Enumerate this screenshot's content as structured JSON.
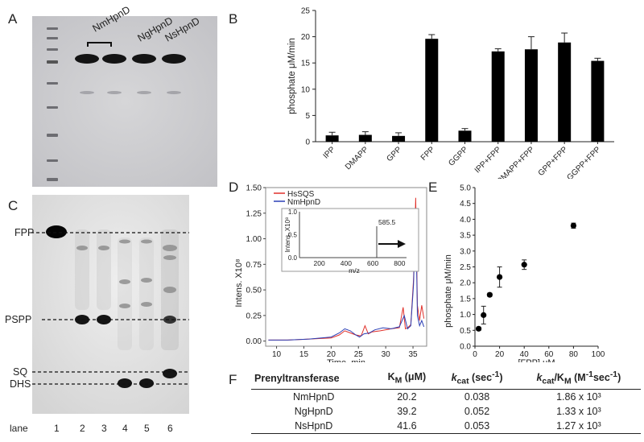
{
  "panels": {
    "A": {
      "letter": "A",
      "lane_labels": [
        "NmHpnD",
        "NgHpnD",
        "NsHpnD"
      ]
    },
    "B": {
      "letter": "B"
    },
    "C": {
      "letter": "C",
      "band_labels": [
        "FPP",
        "PSPP",
        "SQ",
        "DHS"
      ],
      "lane_title": "lane",
      "lanes": [
        "1",
        "2",
        "3",
        "4",
        "5",
        "6"
      ]
    },
    "D": {
      "letter": "D",
      "legend": [
        "HsSQS",
        "NmHpnD"
      ],
      "inset": {
        "ylabel": "Intens. X10⁸",
        "xlabel": "m/z",
        "peak_label": "585.5",
        "yticks": [
          "0.0",
          "0.5",
          "1.0"
        ],
        "xticks": [
          "200",
          "400",
          "600",
          "800"
        ]
      }
    },
    "E": {
      "letter": "E"
    },
    "F": {
      "letter": "F",
      "headers": [
        "Prenyltransferase",
        "KM (μM)",
        "kcat (sec⁻¹)",
        "kcat/KM (M⁻¹sec⁻¹)"
      ],
      "rows": [
        [
          "NmHpnD",
          "20.2",
          "0.038",
          "1.86 x 10³"
        ],
        [
          "NgHpnD",
          "39.2",
          "0.052",
          "1.33 x 10³"
        ],
        [
          "NsHpnD",
          "41.6",
          "0.053",
          "1.27 x 10³"
        ]
      ]
    }
  },
  "chart_data": [
    {
      "panel": "B",
      "type": "bar",
      "categories": [
        "IPP",
        "DMAPP",
        "GPP",
        "FPP",
        "GGPP",
        "IPP+FPP",
        "DMAPP+FPP",
        "GPP+FPP",
        "GGPP+FPP"
      ],
      "values": [
        1.2,
        1.3,
        1.1,
        19.6,
        2.1,
        17.2,
        17.6,
        18.9,
        15.4
      ],
      "errors": [
        0.6,
        0.6,
        0.6,
        0.8,
        0.4,
        0.5,
        2.4,
        1.8,
        0.5
      ],
      "ylabel": "phosphate μM/min",
      "ylim": [
        0,
        25
      ],
      "yticks": [
        0,
        5,
        10,
        15,
        20,
        25
      ],
      "color": "#000000"
    },
    {
      "panel": "D",
      "type": "line",
      "xlabel": "Time, min",
      "ylabel": "Intens. X10⁸",
      "xlim": [
        8,
        37.5
      ],
      "ylim": [
        -0.05,
        1.5
      ],
      "xticks": [
        10,
        15,
        20,
        25,
        30,
        35
      ],
      "yticks": [
        "0.00",
        "0.25",
        "0.50",
        "0.75",
        "1.00",
        "1.25",
        "1.50"
      ],
      "series": [
        {
          "name": "HsSQS",
          "color": "#e0302a",
          "x": [
            8.5,
            12,
            16,
            20,
            21.5,
            22.5,
            23.5,
            24.5,
            25.5,
            26.2,
            26.8,
            27.5,
            29,
            31,
            32.5,
            33.2,
            33.6,
            34,
            34.6,
            35.1,
            35.5,
            35.8,
            36.2,
            36.6,
            37
          ],
          "y": [
            0.01,
            0.01,
            0.02,
            0.03,
            0.06,
            0.1,
            0.08,
            0.06,
            0.05,
            0.15,
            0.07,
            0.09,
            0.1,
            0.12,
            0.13,
            0.33,
            0.12,
            0.13,
            0.16,
            0.6,
            1.4,
            0.35,
            0.2,
            0.35,
            0.22
          ]
        },
        {
          "name": "NmHpnD",
          "color": "#2b3fb5",
          "x": [
            8.5,
            12,
            16,
            20,
            21.5,
            22.5,
            23.5,
            24.5,
            25.2,
            26,
            27,
            28,
            29.5,
            31,
            32.5,
            33.4,
            34,
            34.6,
            35.1,
            35.5,
            35.8,
            36.2,
            36.6,
            37
          ],
          "y": [
            0.01,
            0.01,
            0.02,
            0.04,
            0.08,
            0.12,
            0.1,
            0.06,
            0.04,
            0.07,
            0.08,
            0.11,
            0.13,
            0.12,
            0.14,
            0.25,
            0.12,
            0.15,
            0.55,
            1.3,
            0.25,
            0.15,
            0.2,
            0.14
          ]
        }
      ]
    },
    {
      "panel": "E",
      "type": "scatter",
      "xlabel": "[FPP] μM",
      "ylabel": "phosphate μM/min",
      "xlim": [
        0,
        100
      ],
      "ylim": [
        0,
        5
      ],
      "xticks": [
        0,
        20,
        40,
        60,
        80,
        100
      ],
      "yticks": [
        "0.0",
        "0.5",
        "1.0",
        "1.5",
        "2.0",
        "2.5",
        "3.0",
        "3.5",
        "4.0",
        "4.5",
        "5.0"
      ],
      "x": [
        3,
        7,
        12,
        20,
        40,
        80
      ],
      "y": [
        0.55,
        0.98,
        1.62,
        2.18,
        2.57,
        3.8
      ],
      "errors": [
        0.05,
        0.28,
        0.05,
        0.32,
        0.15,
        0.08
      ]
    }
  ]
}
